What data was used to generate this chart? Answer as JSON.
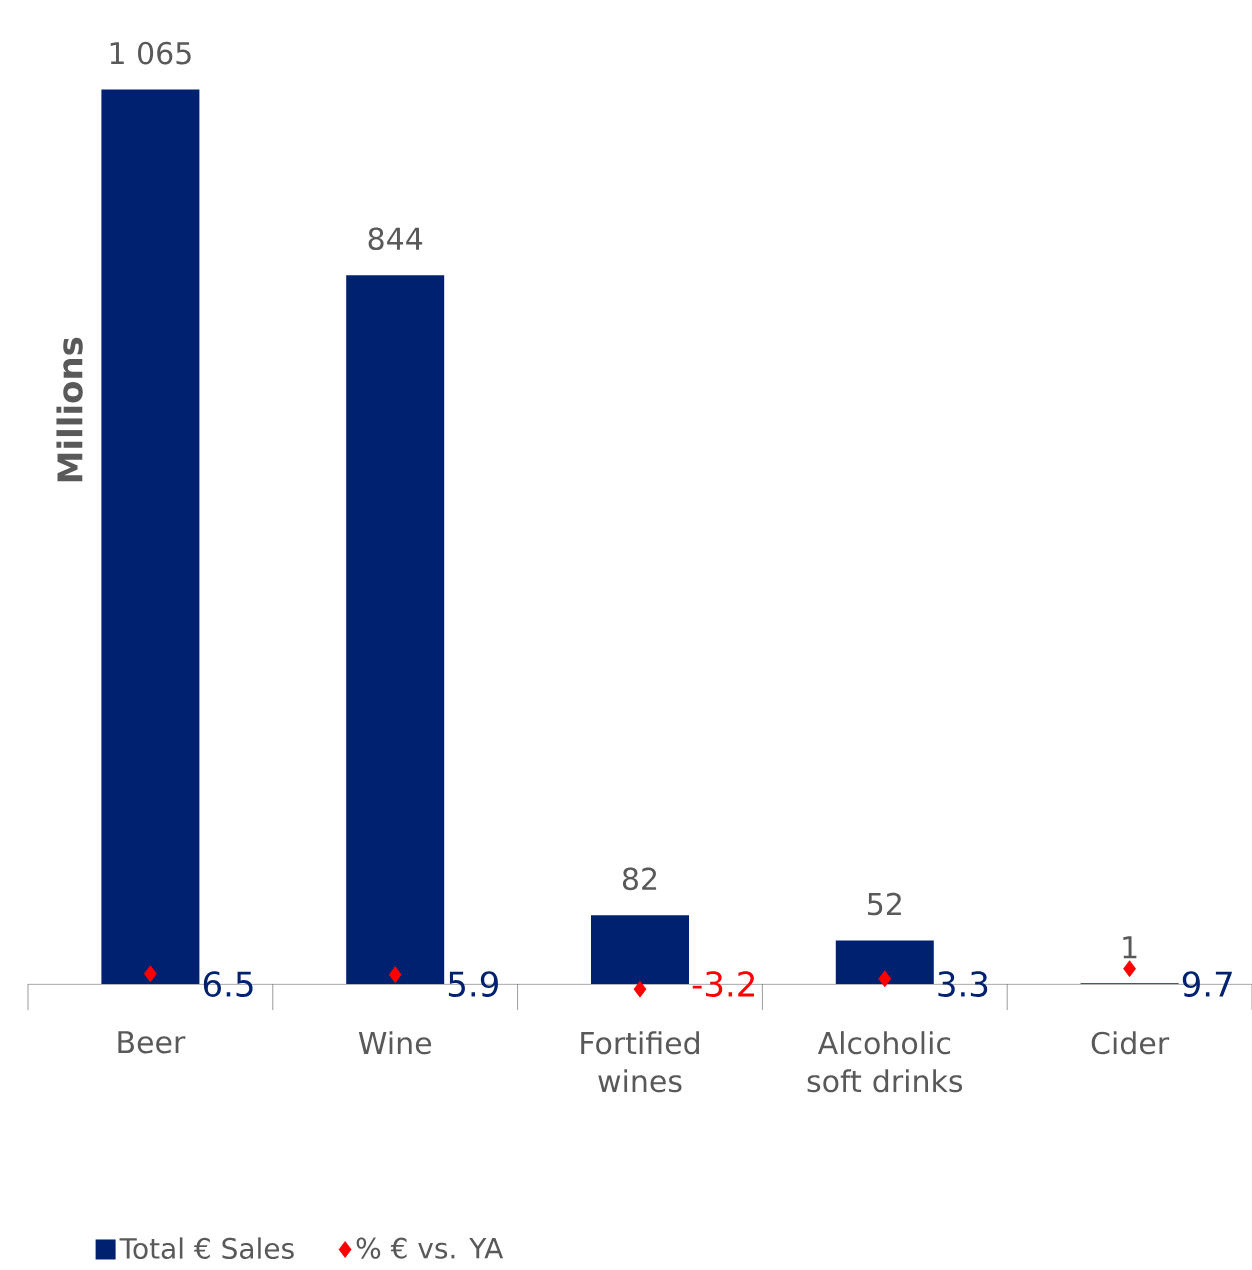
{
  "chart_data": {
    "type": "bar",
    "ylabel": "Millions",
    "categories": [
      "Beer",
      "Wine",
      "Fortified wines",
      "Alcoholic soft drinks",
      "Cider"
    ],
    "series": [
      {
        "name": "Total € Sales",
        "color": "#002070",
        "values": [
          1065,
          844,
          82,
          52,
          1
        ],
        "value_labels": [
          "1 065",
          "844",
          "82",
          "52",
          "1"
        ]
      },
      {
        "name": "% € vs. YA",
        "type": "scatter",
        "axis": "y2",
        "color": "#ff0000",
        "values": [
          6.5,
          5.9,
          -3.2,
          3.3,
          9.7
        ],
        "value_labels": [
          "6.5",
          "5.9",
          "-3.2",
          "3.3",
          "9.7"
        ]
      }
    ],
    "tick_labels": "x",
    "legend": "bottom",
    "marker": "diamond"
  }
}
